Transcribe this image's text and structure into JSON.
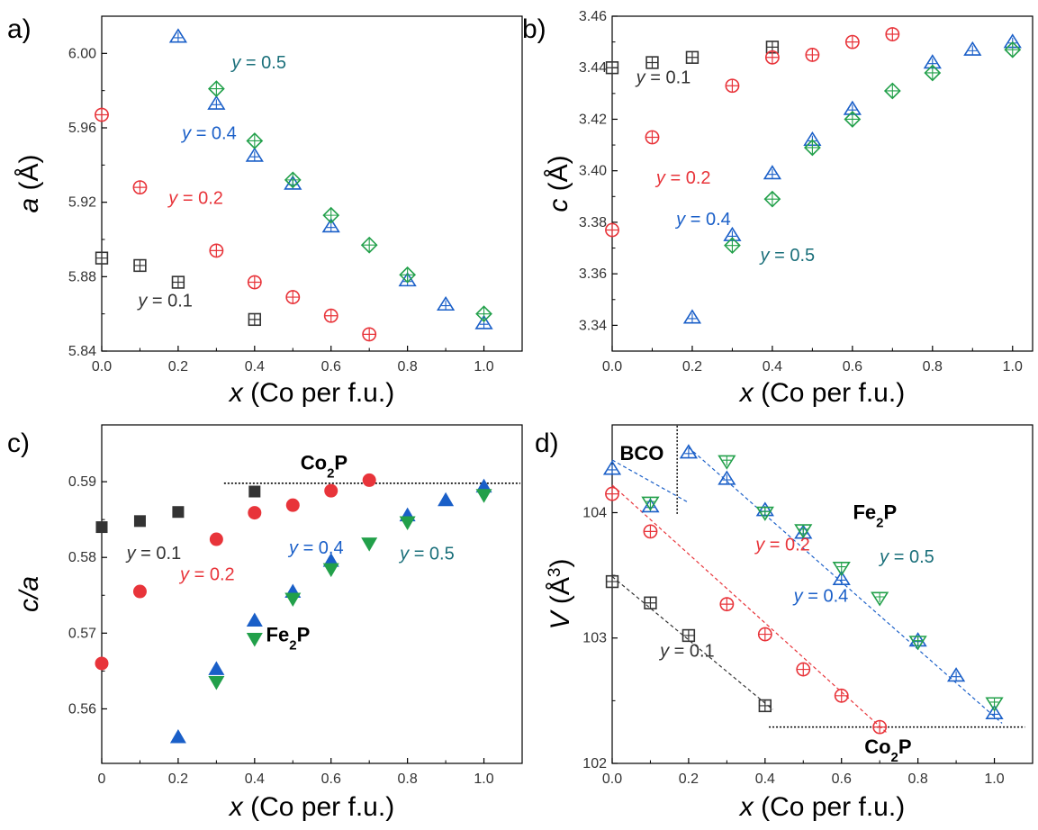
{
  "colors": {
    "y01": "#333333",
    "y02": "#e8343a",
    "y04": "#1a5fc8",
    "y05": "#22a04a",
    "y05_text": "#1a6f7a",
    "fit_black": "#444444"
  },
  "chart_data": [
    {
      "panel": "a)",
      "type": "scatter",
      "xlabel_var": "x",
      "xlabel_rest": " (Co per f.u.)",
      "ylabel_var": "a",
      "ylabel_rest": " (Å)",
      "xlim": [
        0,
        1.1
      ],
      "ylim": [
        5.84,
        6.02
      ],
      "xticks": [
        0.0,
        0.2,
        0.4,
        0.6,
        0.8,
        1.0
      ],
      "xtick_labels": [
        "0.0",
        "0.2",
        "0.4",
        "0.6",
        "0.8",
        "1.0"
      ],
      "yticks": [
        5.84,
        5.88,
        5.92,
        5.96,
        6.0
      ],
      "ytick_labels": [
        "5.84",
        "5.88",
        "5.92",
        "5.96",
        "6.00"
      ],
      "series": [
        {
          "key": "y01",
          "marker": "square-cross",
          "x": [
            0.0,
            0.1,
            0.2,
            0.4
          ],
          "y": [
            5.89,
            5.886,
            5.877,
            5.857
          ]
        },
        {
          "key": "y02",
          "marker": "circle-cross",
          "x": [
            0.0,
            0.1,
            0.3,
            0.4,
            0.5,
            0.6,
            0.7
          ],
          "y": [
            5.967,
            5.928,
            5.894,
            5.877,
            5.869,
            5.859,
            5.849
          ]
        },
        {
          "key": "y04",
          "marker": "triangle-cross",
          "x": [
            0.2,
            0.3,
            0.4,
            0.5,
            0.6,
            0.8,
            0.9,
            1.0
          ],
          "y": [
            6.009,
            5.973,
            5.945,
            5.93,
            5.907,
            5.878,
            5.865,
            5.855
          ]
        },
        {
          "key": "y05",
          "marker": "diamond-cross",
          "x": [
            0.3,
            0.4,
            0.5,
            0.6,
            0.7,
            0.8,
            1.0
          ],
          "y": [
            5.981,
            5.953,
            5.932,
            5.913,
            5.897,
            5.881,
            5.86
          ]
        }
      ],
      "labels": [
        {
          "pre": "y",
          "post": " = 0.1",
          "key": "y01",
          "x": 0.095,
          "y": 5.864
        },
        {
          "pre": "y",
          "post": " = 0.2",
          "key": "y02",
          "x": 0.175,
          "y": 5.919
        },
        {
          "pre": "y",
          "post": " = 0.4",
          "key": "y04",
          "x": 0.21,
          "y": 5.954
        },
        {
          "pre": "y",
          "post": " = 0.5",
          "key": "y05_text",
          "x": 0.34,
          "y": 5.992,
          "size": 22
        }
      ]
    },
    {
      "panel": "b)",
      "type": "scatter",
      "xlabel_var": "x",
      "xlabel_rest": " (Co per f.u.)",
      "ylabel_var": "c",
      "ylabel_rest": " (Å)",
      "xlim": [
        0,
        1.05
      ],
      "ylim": [
        3.33,
        3.46
      ],
      "xticks": [
        0.0,
        0.2,
        0.4,
        0.6,
        0.8,
        1.0
      ],
      "xtick_labels": [
        "0.0",
        "0.2",
        "0.4",
        "0.6",
        "0.8",
        "1.0"
      ],
      "yticks": [
        3.34,
        3.36,
        3.38,
        3.4,
        3.42,
        3.44,
        3.46
      ],
      "ytick_labels": [
        "3.34",
        "3.36",
        "3.38",
        "3.40",
        "3.42",
        "3.44",
        "3.46"
      ],
      "series": [
        {
          "key": "y01",
          "marker": "square-cross",
          "x": [
            0.0,
            0.1,
            0.2,
            0.4
          ],
          "y": [
            3.44,
            3.442,
            3.444,
            3.448
          ]
        },
        {
          "key": "y02",
          "marker": "circle-cross",
          "x": [
            0.0,
            0.1,
            0.3,
            0.4,
            0.5,
            0.6,
            0.7
          ],
          "y": [
            3.377,
            3.413,
            3.433,
            3.444,
            3.445,
            3.45,
            3.453
          ]
        },
        {
          "key": "y04",
          "marker": "triangle-cross",
          "x": [
            0.2,
            0.3,
            0.4,
            0.5,
            0.6,
            0.8,
            0.9,
            1.0
          ],
          "y": [
            3.343,
            3.375,
            3.399,
            3.412,
            3.424,
            3.442,
            3.447,
            3.45
          ]
        },
        {
          "key": "y05",
          "marker": "diamond-cross",
          "x": [
            0.3,
            0.4,
            0.5,
            0.6,
            0.7,
            0.8,
            1.0
          ],
          "y": [
            3.371,
            3.389,
            3.409,
            3.42,
            3.431,
            3.438,
            3.447
          ]
        }
      ],
      "labels": [
        {
          "pre": "y",
          "post": " = 0.1",
          "key": "y01",
          "x": 0.06,
          "y": 3.434
        },
        {
          "pre": "y",
          "post": " = 0.2",
          "key": "y02",
          "x": 0.11,
          "y": 3.395
        },
        {
          "pre": "y",
          "post": " = 0.4",
          "key": "y04",
          "x": 0.16,
          "y": 3.379
        },
        {
          "pre": "y",
          "post": " = 0.5",
          "key": "y05_text",
          "x": 0.37,
          "y": 3.365,
          "size": 22
        }
      ]
    },
    {
      "panel": "c)",
      "type": "scatter",
      "xlabel_var": "x",
      "xlabel_rest": " (Co per f.u.)",
      "ylabel_var": "c/a",
      "ylabel_rest": "",
      "xlim": [
        0,
        1.1
      ],
      "ylim": [
        0.5528,
        0.5975
      ],
      "xticks": [
        0.0,
        0.2,
        0.4,
        0.6,
        0.8,
        1.0
      ],
      "xtick_labels": [
        "0",
        "0.2",
        "0.4",
        "0.6",
        "0.8",
        "1.0"
      ],
      "yticks": [
        0.56,
        0.57,
        0.58,
        0.59
      ],
      "ytick_labels": [
        "0.56",
        "0.57",
        "0.58",
        "0.59"
      ],
      "series": [
        {
          "key": "y01",
          "marker": "square-filled",
          "x": [
            0.0,
            0.1,
            0.2,
            0.4
          ],
          "y": [
            0.584,
            0.5848,
            0.586,
            0.5887
          ]
        },
        {
          "key": "y02",
          "marker": "circle-filled",
          "x": [
            0.0,
            0.1,
            0.3,
            0.4,
            0.5,
            0.6,
            0.7
          ],
          "y": [
            0.566,
            0.5755,
            0.5824,
            0.5859,
            0.5869,
            0.5888,
            0.5902
          ]
        },
        {
          "key": "y04",
          "marker": "triangle-up-filled",
          "x": [
            0.2,
            0.3,
            0.4,
            0.5,
            0.6,
            0.8,
            0.9,
            1.0
          ],
          "y": [
            0.5563,
            0.5653,
            0.5717,
            0.5755,
            0.5796,
            0.5856,
            0.5876,
            0.5894
          ]
        },
        {
          "key": "y05",
          "marker": "triangle-down-filled",
          "x": [
            0.3,
            0.4,
            0.5,
            0.6,
            0.7,
            0.8,
            1.0
          ],
          "y": [
            0.5635,
            0.5692,
            0.5745,
            0.5784,
            0.5818,
            0.5846,
            0.5882
          ]
        }
      ],
      "hlines": [
        {
          "y": 0.5898,
          "x0": 0.32,
          "x1": 1.1
        }
      ],
      "labels": [
        {
          "pre": "y",
          "post": " = 0.1",
          "key": "y01",
          "x": 0.065,
          "y": 0.5798
        },
        {
          "pre": "y",
          "post": " = 0.2",
          "key": "y02",
          "x": 0.205,
          "y": 0.577
        },
        {
          "pre": "y",
          "post": " = 0.4",
          "key": "y04",
          "x": 0.49,
          "y": 0.5805
        },
        {
          "pre": "y",
          "post": " = 0.5",
          "key": "y05_text",
          "x": 0.78,
          "y": 0.5797,
          "size": 22
        }
      ],
      "bold_labels": [
        {
          "base": "Co",
          "sub": "2",
          "tail": "P",
          "x": 0.52,
          "y": 0.5916
        },
        {
          "base": "Fe",
          "sub": "2",
          "tail": "P",
          "x": 0.43,
          "y": 0.5689
        }
      ]
    },
    {
      "panel": "d)",
      "type": "scatter",
      "xlabel_var": "x",
      "xlabel_rest": " (Co per f.u.)",
      "ylabel_var": "V",
      "ylabel_rest": " (Å",
      "ylabel_sup": "3",
      "ylabel_close": ")",
      "xlim": [
        0,
        1.1
      ],
      "ylim": [
        102.0,
        104.7
      ],
      "xticks": [
        0.0,
        0.2,
        0.4,
        0.6,
        0.8,
        1.0
      ],
      "xtick_labels": [
        "0.0",
        "0.2",
        "0.4",
        "0.6",
        "0.8",
        "1.0"
      ],
      "yticks": [
        102,
        103,
        104
      ],
      "ytick_labels": [
        "102",
        "103",
        "104"
      ],
      "series": [
        {
          "key": "y01",
          "marker": "square-cross",
          "x": [
            0.0,
            0.1,
            0.2,
            0.4
          ],
          "y": [
            103.45,
            103.28,
            103.02,
            102.46
          ]
        },
        {
          "key": "y02",
          "marker": "circle-cross",
          "x": [
            0.0,
            0.1,
            0.3,
            0.4,
            0.5,
            0.6,
            0.7
          ],
          "y": [
            104.15,
            103.85,
            103.27,
            103.03,
            102.75,
            102.54,
            102.29
          ]
        },
        {
          "key": "y04",
          "marker": "triangle-cross",
          "x": [
            0.0,
            0.1,
            0.2,
            0.3,
            0.4,
            0.5,
            0.6,
            0.8,
            0.9,
            1.0
          ],
          "y": [
            104.35,
            104.05,
            104.48,
            104.27,
            104.02,
            103.84,
            103.47,
            102.98,
            102.7,
            102.4
          ]
        },
        {
          "key": "y05",
          "marker": "triangle-down-cross",
          "x": [
            0.1,
            0.3,
            0.4,
            0.5,
            0.6,
            0.7,
            0.8,
            1.0
          ],
          "y": [
            104.08,
            104.41,
            104.0,
            103.86,
            103.56,
            103.32,
            102.97,
            102.48
          ]
        }
      ],
      "fits": [
        {
          "key": "y01",
          "x0": 0.0,
          "y0": 103.49,
          "x1": 0.42,
          "y1": 102.43
        },
        {
          "key": "y02",
          "x0": 0.0,
          "y0": 104.22,
          "x1": 0.72,
          "y1": 102.24
        },
        {
          "key": "y04",
          "x0": 0.0,
          "y0": 104.42,
          "x1": 0.2,
          "y1": 104.08
        },
        {
          "key": "y04",
          "x0": 0.2,
          "y0": 104.52,
          "x1": 1.02,
          "y1": 102.32
        }
      ],
      "hlines": [
        {
          "y": 102.29,
          "x0": 0.41,
          "x1": 1.08
        }
      ],
      "vlines": [
        {
          "x": 0.17,
          "y0": 103.99,
          "y1": 104.7
        }
      ],
      "labels": [
        {
          "pre": "y",
          "post": " = 0.1",
          "key": "y01",
          "x": 0.125,
          "y": 102.85
        },
        {
          "pre": "y",
          "post": " = 0.2",
          "key": "y02",
          "x": 0.375,
          "y": 103.7
        },
        {
          "pre": "y",
          "post": " = 0.4",
          "key": "y04",
          "x": 0.475,
          "y": 103.29
        },
        {
          "pre": "y",
          "post": " = 0.5",
          "key": "y05_text",
          "x": 0.7,
          "y": 103.6,
          "size": 22
        }
      ],
      "bold_labels": [
        {
          "base": "BCO",
          "sub": "",
          "tail": "",
          "x": 0.02,
          "y": 104.42
        },
        {
          "base": "Fe",
          "sub": "2",
          "tail": "P",
          "x": 0.63,
          "y": 103.95
        },
        {
          "base": "Co",
          "sub": "2",
          "tail": "P",
          "x": 0.66,
          "y": 102.08
        }
      ]
    }
  ]
}
